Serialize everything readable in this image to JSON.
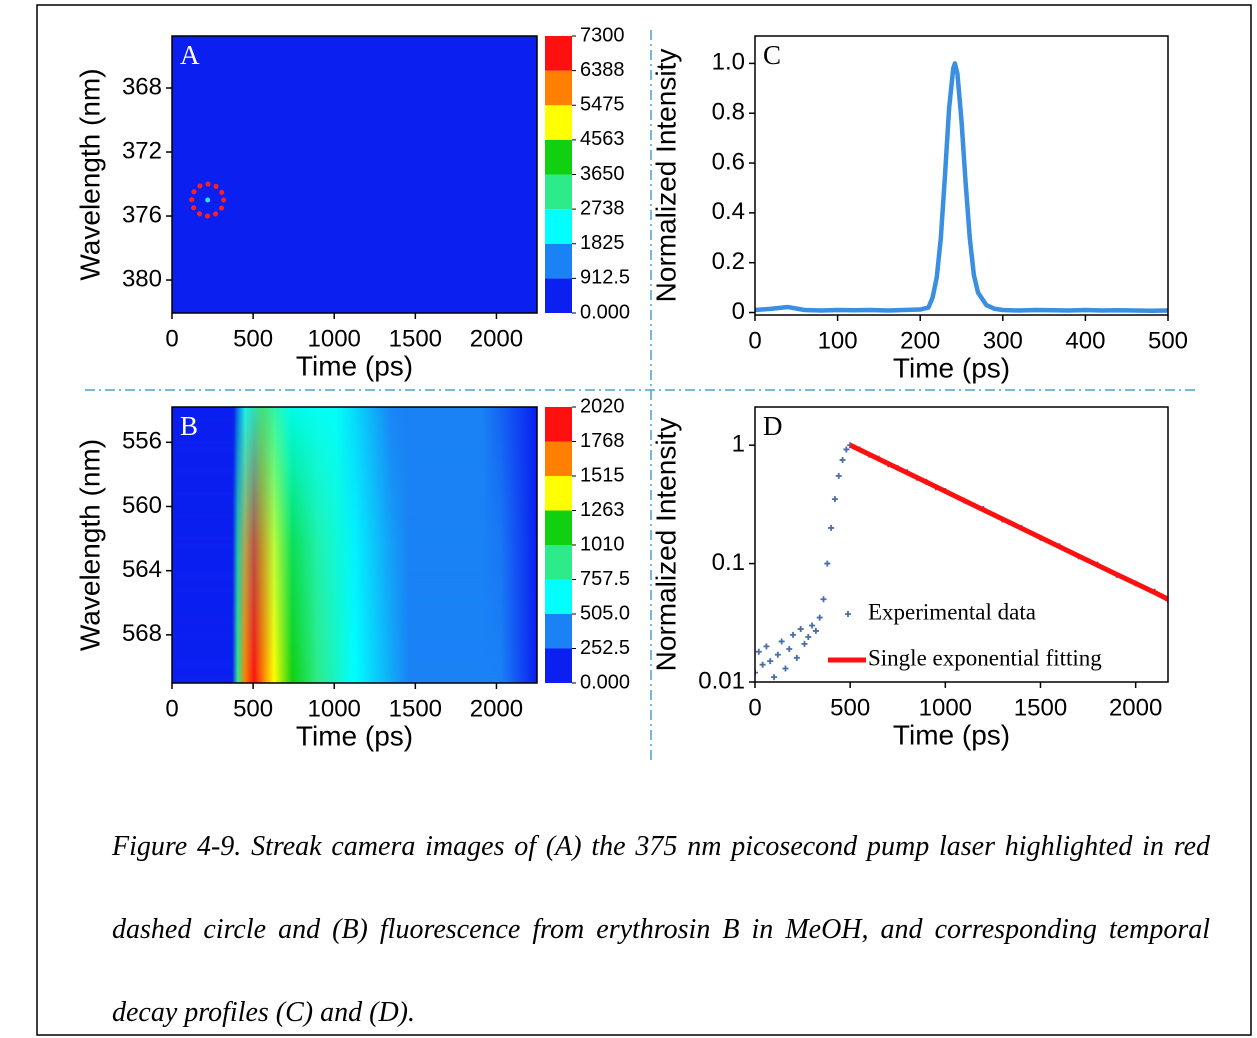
{
  "chart_data": [
    {
      "type": "heatmap",
      "panel_label": "A",
      "xlabel": "Time (ps)",
      "ylabel": "Wavelength (nm)",
      "xlim": [
        0,
        2250
      ],
      "xticks": [
        0,
        500,
        1000,
        1500,
        2000
      ],
      "ylim": [
        364.75,
        382.06
      ],
      "yreverse": true,
      "yticks": [
        368,
        372,
        376,
        380
      ],
      "spot": {
        "x": 220,
        "y": 375
      },
      "spot_color": "#30e0e0",
      "highlight_color": "#ff2020",
      "colorbar": {
        "ticks": [
          {
            "value": 0,
            "label": "0.000"
          },
          912.5,
          1825,
          2738,
          3650,
          4563,
          5475,
          6388,
          7300
        ],
        "colors": [
          "#0a1ff0",
          "#1a82f5",
          "#00ffff",
          "#2eeb8a",
          "#10d010",
          "#ffff00",
          "#ff8000",
          "#ff1010"
        ]
      }
    },
    {
      "type": "heatmap",
      "panel_label": "B",
      "xlabel": "Time (ps)",
      "ylabel": "Wavelength (nm)",
      "xlim": [
        0,
        2250
      ],
      "xticks": [
        0,
        500,
        1000,
        1500,
        2000
      ],
      "ylim": [
        553.8,
        571.0
      ],
      "yreverse": true,
      "yticks": [
        556,
        560,
        564,
        568
      ],
      "colorbar": {
        "ticks": [
          {
            "value": 0,
            "label": "0.000"
          },
          252.5,
          {
            "value": 505,
            "label": "505.0"
          },
          757.5,
          1010,
          1263,
          1515,
          1768,
          2020
        ],
        "colors": [
          "#0a1ff0",
          "#1a82f5",
          "#00ffff",
          "#2eeb8a",
          "#10d010",
          "#ffff00",
          "#ff8000",
          "#ff1010"
        ]
      }
    },
    {
      "type": "line",
      "panel_label": "C",
      "xlabel": "Time (ps)",
      "ylabel": "Normalized Intensity",
      "xlim": [
        0,
        500
      ],
      "xticks": [
        0,
        100,
        200,
        300,
        400,
        500
      ],
      "ylim": [
        -0.01,
        1.11
      ],
      "yticks": [
        0,
        0.2,
        0.4,
        0.6,
        0.8,
        {
          "value": 1,
          "label": "1.0"
        }
      ],
      "x": [
        0,
        20,
        40,
        60,
        80,
        100,
        120,
        140,
        160,
        180,
        200,
        210,
        215,
        220,
        225,
        230,
        235,
        240,
        242,
        245,
        250,
        255,
        260,
        265,
        270,
        280,
        290,
        300,
        320,
        340,
        360,
        380,
        400,
        420,
        440,
        460,
        480,
        500
      ],
      "series": [
        {
          "color": "#3a8fe0",
          "values": [
            0.01,
            0.015,
            0.022,
            0.01,
            0.008,
            0.01,
            0.009,
            0.01,
            0.008,
            0.01,
            0.012,
            0.02,
            0.06,
            0.14,
            0.3,
            0.55,
            0.82,
            0.98,
            1.0,
            0.96,
            0.77,
            0.52,
            0.3,
            0.15,
            0.08,
            0.03,
            0.015,
            0.01,
            0.008,
            0.01,
            0.009,
            0.008,
            0.01,
            0.008,
            0.009,
            0.008,
            0.007,
            0.008
          ]
        }
      ]
    },
    {
      "type": "scatter",
      "panel_label": "D",
      "xlabel": "Time (ps)",
      "ylabel": "Normalized Intensity",
      "xlim": [
        0,
        2170
      ],
      "xticks": [
        0,
        500,
        1000,
        1500,
        2000
      ],
      "ylim": [
        0.01,
        2.1
      ],
      "ylog": true,
      "yticks": [
        0.01,
        0.1,
        1
      ],
      "legend": "lower right",
      "series": [
        {
          "name": "Experimental data",
          "color": "#4a6fa8",
          "mark": "plus",
          "x": [
            0,
            20,
            40,
            60,
            80,
            100,
            120,
            140,
            160,
            180,
            200,
            220,
            240,
            260,
            280,
            300,
            320,
            340,
            360,
            380,
            400,
            420,
            440,
            460,
            480,
            500,
            550,
            600,
            650,
            700,
            750,
            800,
            850,
            900,
            950,
            1000,
            1100,
            1200,
            1300,
            1400,
            1500,
            1600,
            1700,
            1800,
            1900,
            2000,
            2100,
            2170
          ],
          "values": [
            0.012,
            0.018,
            0.014,
            0.02,
            0.015,
            0.011,
            0.017,
            0.022,
            0.013,
            0.019,
            0.025,
            0.016,
            0.028,
            0.021,
            0.024,
            0.03,
            0.027,
            0.035,
            0.05,
            0.1,
            0.2,
            0.35,
            0.55,
            0.75,
            0.92,
            1.0,
            0.92,
            0.83,
            0.77,
            0.69,
            0.64,
            0.59,
            0.53,
            0.49,
            0.44,
            0.41,
            0.34,
            0.29,
            0.235,
            0.2,
            0.165,
            0.14,
            0.115,
            0.098,
            0.08,
            0.068,
            0.058,
            0.049
          ]
        },
        {
          "name": "Single exponential fitting",
          "color": "#ff1010",
          "mark": "line",
          "x": [
            500,
            700,
            900,
            1100,
            1300,
            1500,
            1700,
            1900,
            2100,
            2170
          ],
          "values": [
            1,
            0.698,
            0.488,
            0.34,
            0.238,
            0.166,
            0.116,
            0.081,
            0.057,
            0.05
          ]
        }
      ]
    }
  ],
  "caption": "Figure 4-9. Streak camera images of (A) the 375 nm picosecond pump laser highlighted in red dashed circle and (B) fluorescence from erythrosin B in MeOH, and corresponding temporal decay profiles (C) and (D)."
}
